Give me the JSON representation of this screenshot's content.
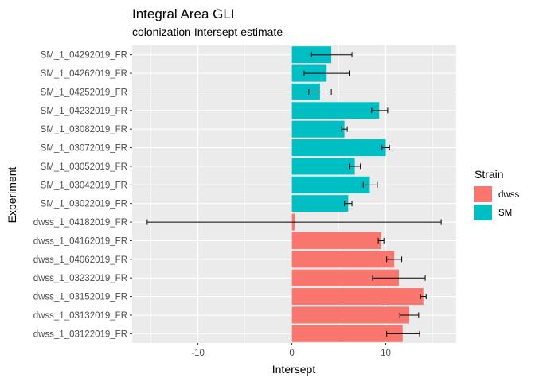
{
  "chart_data": {
    "type": "bar",
    "orientation": "horizontal",
    "title": "Integral Area GLI",
    "subtitle": "colonization Intersept estimate",
    "xlabel": "Intersept",
    "ylabel": "Experiment",
    "xlim": [
      -17.0,
      17.5
    ],
    "xticks": [
      -10,
      0,
      10
    ],
    "grid": true,
    "legend_placement": "right",
    "legend": {
      "title": "Strain",
      "entries": [
        {
          "name": "dwss",
          "color": "#F8766D"
        },
        {
          "name": "SM",
          "color": "#00BFC4"
        }
      ]
    },
    "categories": [
      "SM_1_04292019_FR",
      "SM_1_04262019_FR",
      "SM_1_04252019_FR",
      "SM_1_04232019_FR",
      "SM_1_03082019_FR",
      "SM_1_03072019_FR",
      "SM_1_03052019_FR",
      "SM_1_03042019_FR",
      "SM_1_03022019_FR",
      "dwss_1_04182019_FR",
      "dwss_1_04162019_FR",
      "dwss_1_04062019_FR",
      "dwss_1_03232019_FR",
      "dwss_1_03152019_FR",
      "dwss_1_03132019_FR",
      "dwss_1_03122019_FR"
    ],
    "strain": [
      "SM",
      "SM",
      "SM",
      "SM",
      "SM",
      "SM",
      "SM",
      "SM",
      "SM",
      "dwss",
      "dwss",
      "dwss",
      "dwss",
      "dwss",
      "dwss",
      "dwss"
    ],
    "values": [
      4.2,
      3.7,
      3.0,
      9.3,
      5.6,
      10.0,
      6.7,
      8.3,
      6.0,
      0.3,
      9.5,
      10.9,
      11.4,
      14.0,
      12.5,
      11.8
    ],
    "error_low": [
      2.1,
      1.3,
      1.8,
      8.5,
      5.3,
      9.6,
      6.1,
      7.6,
      5.6,
      -15.4,
      9.2,
      10.1,
      8.6,
      13.7,
      11.5,
      10.1
    ],
    "error_high": [
      6.4,
      6.1,
      4.2,
      10.2,
      5.9,
      10.4,
      7.3,
      9.1,
      6.4,
      15.9,
      9.8,
      11.7,
      14.2,
      14.3,
      13.5,
      13.6
    ]
  }
}
